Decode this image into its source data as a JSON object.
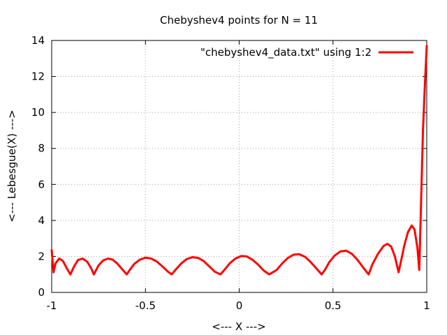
{
  "chart_data": {
    "type": "line",
    "title": "Chebyshev4 points for N = 11",
    "xlabel": "<--- X --->",
    "ylabel": "<--- Lebesgue(X) --->",
    "xlim": [
      -1,
      1
    ],
    "ylim": [
      0,
      14
    ],
    "x_ticks": [
      -1,
      -0.5,
      0,
      0.5,
      1
    ],
    "x_tick_labels": [
      "-1",
      "-0.5",
      "0",
      "0.5",
      "1"
    ],
    "y_ticks": [
      0,
      2,
      4,
      6,
      8,
      10,
      12,
      14
    ],
    "y_tick_labels": [
      "0",
      "2",
      "4",
      "6",
      "8",
      "10",
      "12",
      "14"
    ],
    "grid": true,
    "legend_position": "top-right",
    "series": [
      {
        "name": "\"chebyshev4_data.txt\" using 1:2",
        "color": "#ff0000",
        "x": [
          -1.0,
          -0.99,
          -0.98,
          -0.96,
          -0.94,
          -0.92,
          -0.9,
          -0.88,
          -0.86,
          -0.835,
          -0.81,
          -0.79,
          -0.775,
          -0.75,
          -0.725,
          -0.7,
          -0.675,
          -0.65,
          -0.625,
          -0.6,
          -0.58,
          -0.56,
          -0.53,
          -0.5,
          -0.47,
          -0.44,
          -0.41,
          -0.38,
          -0.36,
          -0.34,
          -0.31,
          -0.28,
          -0.25,
          -0.22,
          -0.19,
          -0.16,
          -0.13,
          -0.1,
          -0.075,
          -0.05,
          -0.02,
          0.01,
          0.04,
          0.07,
          0.1,
          0.13,
          0.16,
          0.2,
          0.23,
          0.26,
          0.29,
          0.32,
          0.35,
          0.38,
          0.41,
          0.44,
          0.46,
          0.48,
          0.51,
          0.54,
          0.57,
          0.6,
          0.63,
          0.66,
          0.69,
          0.71,
          0.74,
          0.77,
          0.79,
          0.81,
          0.83,
          0.85,
          0.865,
          0.88,
          0.9,
          0.92,
          0.935,
          0.95,
          0.96,
          0.97,
          0.98,
          0.99,
          1.0
        ],
        "y": [
          2.35,
          1.12,
          1.6,
          1.88,
          1.75,
          1.35,
          1.0,
          1.45,
          1.8,
          1.88,
          1.7,
          1.35,
          1.0,
          1.5,
          1.78,
          1.88,
          1.82,
          1.6,
          1.3,
          1.0,
          1.3,
          1.58,
          1.82,
          1.93,
          1.88,
          1.72,
          1.45,
          1.15,
          1.0,
          1.25,
          1.6,
          1.85,
          1.96,
          1.92,
          1.75,
          1.45,
          1.15,
          1.0,
          1.3,
          1.62,
          1.88,
          2.02,
          2.0,
          1.82,
          1.55,
          1.22,
          1.0,
          1.25,
          1.62,
          1.92,
          2.1,
          2.12,
          1.98,
          1.7,
          1.35,
          1.0,
          1.3,
          1.68,
          2.05,
          2.28,
          2.32,
          2.15,
          1.82,
          1.4,
          1.0,
          1.55,
          2.15,
          2.58,
          2.7,
          2.55,
          2.0,
          1.12,
          1.85,
          2.6,
          3.35,
          3.72,
          3.5,
          2.5,
          1.25,
          5.0,
          9.0,
          11.5,
          13.7
        ]
      }
    ]
  }
}
